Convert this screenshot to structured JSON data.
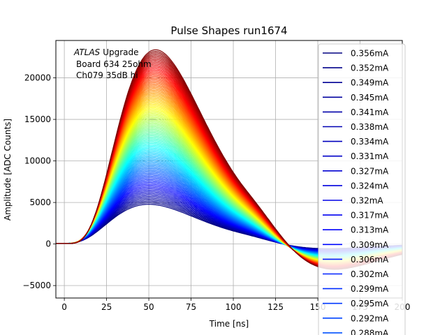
{
  "chart_data": {
    "type": "line",
    "title": "Pulse Shapes run1674",
    "xlabel": "Time [ns]",
    "ylabel": "Amplitude [ADC Counts]",
    "xlim": [
      -5,
      200
    ],
    "ylim": [
      -6500,
      24500
    ],
    "xticks": [
      0,
      25,
      50,
      75,
      100,
      125,
      150,
      175,
      200
    ],
    "yticks": [
      -5000,
      0,
      5000,
      10000,
      15000,
      20000
    ],
    "grid": true,
    "colormap": "jet",
    "annotation": {
      "atlas": "ATLAS",
      "upgrade": "Upgrade",
      "board": "Board 634 25ohm",
      "channel": "Ch079 35dB hi"
    },
    "legend_position": "right",
    "series_count": 100,
    "amplitude_range": [
      4700,
      23300
    ],
    "peak_time_range": [
      51,
      55
    ],
    "undershoot_at_200ns": [
      -4200,
      -800
    ],
    "zero_crossing_ns": 137,
    "legend_entries": [
      {
        "label": "0.356mA",
        "color": "#000080"
      },
      {
        "label": "0.352mA",
        "color": "#00008a"
      },
      {
        "label": "0.349mA",
        "color": "#000094"
      },
      {
        "label": "0.345mA",
        "color": "#00009f"
      },
      {
        "label": "0.341mA",
        "color": "#0000a9"
      },
      {
        "label": "0.338mA",
        "color": "#0000b3"
      },
      {
        "label": "0.334mA",
        "color": "#0000be"
      },
      {
        "label": "0.331mA",
        "color": "#0000c8"
      },
      {
        "label": "0.327mA",
        "color": "#0000d2"
      },
      {
        "label": "0.324mA",
        "color": "#0000dd"
      },
      {
        "label": "0.32mA",
        "color": "#0000e7"
      },
      {
        "label": "0.317mA",
        "color": "#0000f1"
      },
      {
        "label": "0.313mA",
        "color": "#0000fc"
      },
      {
        "label": "0.309mA",
        "color": "#0008ff"
      },
      {
        "label": "0.306mA",
        "color": "#0014ff"
      },
      {
        "label": "0.302mA",
        "color": "#0020ff"
      },
      {
        "label": "0.299mA",
        "color": "#002cff"
      },
      {
        "label": "0.295mA",
        "color": "#0038ff"
      },
      {
        "label": "0.292mA",
        "color": "#0044ff"
      },
      {
        "label": "0.288mA",
        "color": "#0050ff"
      }
    ]
  }
}
